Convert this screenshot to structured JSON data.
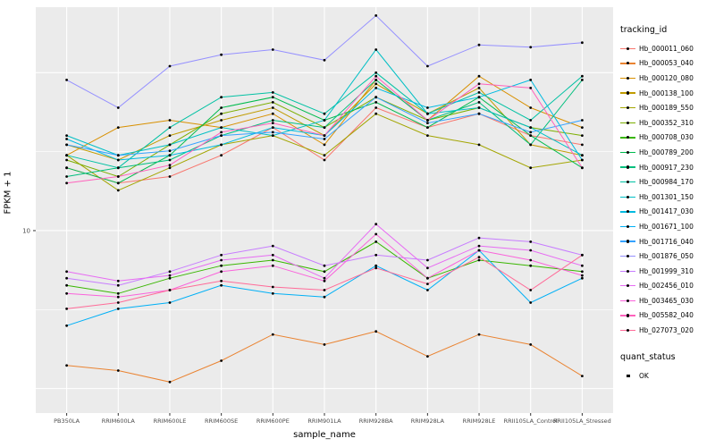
{
  "chart_data": {
    "type": "line",
    "title": "",
    "xlabel": "sample_name",
    "ylabel": "FPKM + 1",
    "y_scale": "log10",
    "ylim": [
      0.7,
      260
    ],
    "y_tick_values": [
      10
    ],
    "y_tick_labels": [
      "10"
    ],
    "grid": true,
    "panel_bg": "#EBEBEB",
    "grid_color": "#FFFFFF",
    "point_color": "#000000",
    "tick_label_color": "#4D4D4D",
    "legend": {
      "color_title": "tracking_id",
      "shape_title": "quant_status",
      "shape_entries": [
        {
          "label": "OK"
        }
      ],
      "position": "right"
    },
    "categories": [
      "PB350LA",
      "RRIM600LA",
      "RRIM600LE",
      "RRIM600SE",
      "RRIM600PE",
      "RRIM901LA",
      "RRIM928BA",
      "RRIM928LA",
      "RRIM928LE",
      "RRII105LA_Control",
      "RRII105LA_Stressed"
    ],
    "series": [
      {
        "name": "Hb_000011_060",
        "color": "#F8766D",
        "values": [
          25,
          20,
          22,
          30,
          45,
          28,
          60,
          45,
          55,
          40,
          35
        ]
      },
      {
        "name": "Hb_000053_040",
        "color": "#EA8331",
        "values": [
          1.4,
          1.3,
          1.1,
          1.5,
          2.2,
          1.9,
          2.3,
          1.6,
          2.2,
          1.9,
          1.2
        ]
      },
      {
        "name": "Hb_000120_080",
        "color": "#D89000",
        "values": [
          30,
          45,
          50,
          45,
          55,
          35,
          90,
          50,
          95,
          60,
          45
        ]
      },
      {
        "name": "Hb_000138_100",
        "color": "#C09B00",
        "values": [
          35,
          28,
          40,
          50,
          60,
          40,
          85,
          55,
          80,
          35,
          30
        ]
      },
      {
        "name": "Hb_000189_550",
        "color": "#A3A500",
        "values": [
          30,
          18,
          25,
          35,
          40,
          30,
          55,
          40,
          35,
          25,
          28
        ]
      },
      {
        "name": "Hb_000352_310",
        "color": "#7CAE00",
        "values": [
          28,
          22,
          35,
          55,
          65,
          45,
          70,
          50,
          60,
          45,
          40
        ]
      },
      {
        "name": "Hb_000708_030",
        "color": "#39B600",
        "values": [
          4.5,
          4,
          5,
          6,
          6.5,
          5.5,
          8.5,
          5,
          6.5,
          6,
          5.5
        ]
      },
      {
        "name": "Hb_000789_200",
        "color": "#00BB4E",
        "values": [
          25,
          20,
          30,
          60,
          70,
          50,
          65,
          45,
          70,
          40,
          25
        ]
      },
      {
        "name": "Hb_000917_230",
        "color": "#00BF7D",
        "values": [
          22,
          25,
          28,
          40,
          50,
          45,
          90,
          50,
          65,
          35,
          90
        ]
      },
      {
        "name": "Hb_000984_170",
        "color": "#00C1A3",
        "values": [
          30,
          25,
          45,
          70,
          75,
          55,
          100,
          55,
          75,
          50,
          95
        ]
      },
      {
        "name": "Hb_001301_150",
        "color": "#00BFC4",
        "values": [
          40,
          30,
          35,
          45,
          40,
          50,
          140,
          55,
          60,
          45,
          30
        ]
      },
      {
        "name": "Hb_001417_030",
        "color": "#00BAE0",
        "values": [
          38,
          28,
          30,
          35,
          45,
          40,
          80,
          60,
          70,
          90,
          28
        ]
      },
      {
        "name": "Hb_001671_100",
        "color": "#00B0F6",
        "values": [
          2.5,
          3.2,
          3.5,
          4.5,
          4,
          3.8,
          6,
          4.2,
          7.5,
          3.5,
          5
        ]
      },
      {
        "name": "Hb_001716_040",
        "color": "#35A2FF",
        "values": [
          35,
          30,
          32,
          40,
          42,
          38,
          70,
          48,
          55,
          42,
          50
        ]
      },
      {
        "name": "Hb_001876_050",
        "color": "#9590FF",
        "values": [
          90,
          60,
          110,
          130,
          140,
          120,
          230,
          110,
          150,
          145,
          155
        ]
      },
      {
        "name": "Hb_001999_310",
        "color": "#C77CFF",
        "values": [
          5,
          4.5,
          5.5,
          7,
          8,
          6,
          7,
          6.5,
          9,
          8.5,
          7
        ]
      },
      {
        "name": "Hb_002456_010",
        "color": "#E76BF3",
        "values": [
          5.5,
          4.8,
          5.2,
          6.5,
          7,
          5,
          11,
          5.8,
          8,
          7.5,
          6
        ]
      },
      {
        "name": "Hb_003465_030",
        "color": "#FA62DB",
        "values": [
          4,
          3.8,
          4.2,
          5.5,
          6,
          4.8,
          9.5,
          5,
          7.5,
          6.5,
          5.2
        ]
      },
      {
        "name": "Hb_005582_040",
        "color": "#FF62BC",
        "values": [
          20,
          22,
          26,
          42,
          48,
          40,
          95,
          50,
          85,
          80,
          25
        ]
      },
      {
        "name": "Hb_027073_020",
        "color": "#FF6A98",
        "values": [
          3.2,
          3.5,
          4.2,
          4.8,
          4.4,
          4.2,
          5.8,
          4.6,
          6.8,
          4.2,
          7.0
        ]
      }
    ]
  }
}
